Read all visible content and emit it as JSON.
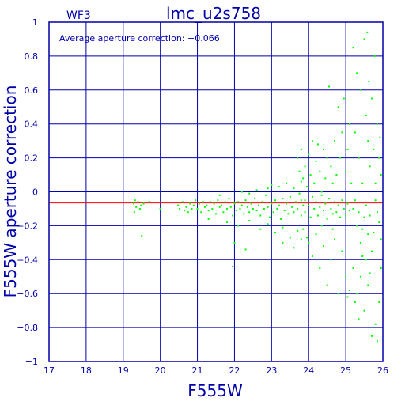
{
  "chart_data": {
    "type": "scatter",
    "title": "lmc_u2s758",
    "chip": "WF3",
    "annotation": "Average aperture correction: −0.066",
    "xlabel": "F555W",
    "ylabel": "F555W aperture correction",
    "xlim": [
      17,
      26
    ],
    "ylim": [
      -1,
      1
    ],
    "xticks": [
      17,
      18,
      19,
      20,
      21,
      22,
      23,
      24,
      25,
      26
    ],
    "yticks": [
      -1,
      -0.8,
      -0.6,
      -0.4,
      -0.2,
      0,
      0.2,
      0.4,
      0.6,
      0.8,
      1
    ],
    "xtick_labels": [
      "17",
      "18",
      "19",
      "20",
      "21",
      "22",
      "23",
      "24",
      "25",
      "26"
    ],
    "ytick_labels": [
      "−1",
      "−0.8",
      "−0.6",
      "−0.4",
      "−0.2",
      "0",
      "0.2",
      "0.4",
      "0.6",
      "0.8",
      "1"
    ],
    "grid": true,
    "average_line": -0.066,
    "colors": {
      "axes": "#0000aa",
      "grid": "#0000aa",
      "points": "#00ff00",
      "average": "#ff0000"
    },
    "series": [
      {
        "points": [
          [
            19.28,
            -0.07
          ],
          [
            19.32,
            -0.05
          ],
          [
            19.35,
            -0.09
          ],
          [
            19.4,
            -0.06
          ],
          [
            19.45,
            -0.1
          ],
          [
            19.48,
            -0.08
          ],
          [
            19.5,
            -0.26
          ],
          [
            19.55,
            -0.07
          ],
          [
            19.3,
            -0.12
          ],
          [
            19.7,
            -0.06
          ],
          [
            20.0,
            -0.1
          ],
          [
            20.48,
            -0.08
          ],
          [
            20.52,
            -0.1
          ],
          [
            20.6,
            -0.06
          ],
          [
            20.65,
            -0.11
          ],
          [
            20.7,
            -0.09
          ],
          [
            20.75,
            -0.12
          ],
          [
            20.8,
            -0.07
          ],
          [
            20.85,
            -0.1
          ],
          [
            20.9,
            -0.08
          ],
          [
            20.95,
            -0.05
          ],
          [
            21.0,
            -0.1
          ],
          [
            21.05,
            -0.07
          ],
          [
            21.1,
            -0.12
          ],
          [
            21.15,
            -0.06
          ],
          [
            21.2,
            -0.09
          ],
          [
            21.25,
            -0.08
          ],
          [
            21.3,
            -0.11
          ],
          [
            21.35,
            -0.06
          ],
          [
            21.4,
            -0.1
          ],
          [
            21.45,
            -0.07
          ],
          [
            21.5,
            -0.13
          ],
          [
            21.55,
            -0.05
          ],
          [
            21.6,
            -0.09
          ],
          [
            21.65,
            -0.08
          ],
          [
            21.7,
            -0.12
          ],
          [
            21.75,
            -0.06
          ],
          [
            21.8,
            -0.1
          ],
          [
            21.85,
            -0.04
          ],
          [
            21.9,
            -0.09
          ],
          [
            21.95,
            -0.14
          ],
          [
            22.0,
            -0.07
          ],
          [
            22.05,
            -0.11
          ],
          [
            22.1,
            -0.06
          ],
          [
            22.15,
            -0.1
          ],
          [
            22.2,
            -0.08
          ],
          [
            22.25,
            -0.13
          ],
          [
            22.3,
            -0.05
          ],
          [
            22.35,
            -0.09
          ],
          [
            22.4,
            -0.12
          ],
          [
            22.45,
            -0.07
          ],
          [
            22.5,
            -0.1
          ],
          [
            22.55,
            -0.04
          ],
          [
            22.6,
            -0.11
          ],
          [
            22.65,
            -0.08
          ],
          [
            22.7,
            -0.14
          ],
          [
            22.75,
            -0.06
          ],
          [
            22.8,
            -0.1
          ],
          [
            22.85,
            -0.02
          ],
          [
            22.9,
            -0.09
          ],
          [
            22.95,
            -0.15
          ],
          [
            23.0,
            -0.07
          ],
          [
            23.05,
            -0.12
          ],
          [
            23.1,
            -0.05
          ],
          [
            23.15,
            -0.1
          ],
          [
            23.2,
            -0.08
          ],
          [
            23.25,
            -0.16
          ],
          [
            23.3,
            -0.04
          ],
          [
            23.35,
            -0.11
          ],
          [
            23.4,
            -0.07
          ],
          [
            23.45,
            -0.13
          ],
          [
            23.5,
            -0.03
          ],
          [
            23.55,
            -0.09
          ],
          [
            23.6,
            -0.12
          ],
          [
            23.65,
            -0.06
          ],
          [
            23.7,
            -0.1
          ],
          [
            23.75,
            -0.01
          ],
          [
            23.8,
            -0.14
          ],
          [
            23.85,
            -0.08
          ],
          [
            23.9,
            -0.05
          ],
          [
            21.3,
            -0.16
          ],
          [
            21.8,
            -0.18
          ],
          [
            22.1,
            -0.2
          ],
          [
            22.4,
            -0.17
          ],
          [
            22.7,
            -0.22
          ],
          [
            22.9,
            -0.19
          ],
          [
            23.1,
            -0.24
          ],
          [
            23.3,
            -0.21
          ],
          [
            23.5,
            -0.27
          ],
          [
            23.7,
            -0.23
          ],
          [
            21.6,
            -0.02
          ],
          [
            22.2,
            0.0
          ],
          [
            22.6,
            0.01
          ],
          [
            22.9,
            0.02
          ],
          [
            23.2,
            0.03
          ],
          [
            23.4,
            0.05
          ],
          [
            23.6,
            0.02
          ],
          [
            23.8,
            0.06
          ],
          [
            23.0,
            0.04
          ],
          [
            22.4,
            -0.01
          ],
          [
            22.0,
            -0.3
          ],
          [
            21.95,
            -0.44
          ],
          [
            22.3,
            -0.34
          ],
          [
            23.3,
            -0.3
          ],
          [
            23.6,
            -0.33
          ],
          [
            23.8,
            -0.28
          ],
          [
            23.7,
            0.2
          ],
          [
            23.75,
            0.12
          ],
          [
            23.8,
            0.25
          ],
          [
            23.85,
            0.08
          ],
          [
            23.9,
            0.15
          ],
          [
            23.95,
            0.03
          ],
          [
            24.0,
            0.22
          ],
          [
            24.05,
            0.1
          ],
          [
            24.1,
            0.3
          ],
          [
            24.15,
            0.05
          ],
          [
            24.2,
            0.18
          ],
          [
            24.25,
            0.28
          ],
          [
            24.3,
            0.12
          ],
          [
            24.35,
            0.0
          ],
          [
            24.4,
            0.25
          ],
          [
            24.45,
            0.08
          ],
          [
            24.5,
            0.2
          ],
          [
            24.55,
            0.62
          ],
          [
            24.6,
            0.15
          ],
          [
            24.65,
            0.05
          ],
          [
            24.7,
            0.3
          ],
          [
            24.75,
            0.1
          ],
          [
            24.8,
            0.5
          ],
          [
            24.85,
            0.2
          ],
          [
            24.9,
            0.35
          ],
          [
            24.95,
            0.55
          ],
          [
            25.0,
            0.12
          ],
          [
            25.05,
            0.25
          ],
          [
            25.1,
            0.4
          ],
          [
            25.15,
            0.05
          ],
          [
            23.8,
            -0.05
          ],
          [
            23.9,
            -0.12
          ],
          [
            24.0,
            -0.08
          ],
          [
            24.05,
            -0.15
          ],
          [
            24.1,
            -0.03
          ],
          [
            24.15,
            -0.1
          ],
          [
            24.2,
            -0.06
          ],
          [
            24.25,
            -0.14
          ],
          [
            24.3,
            -0.09
          ],
          [
            24.35,
            -0.02
          ],
          [
            24.4,
            -0.11
          ],
          [
            24.45,
            -0.07
          ],
          [
            24.5,
            -0.16
          ],
          [
            24.55,
            -0.04
          ],
          [
            24.6,
            -0.1
          ],
          [
            24.65,
            -0.13
          ],
          [
            24.7,
            -0.06
          ],
          [
            24.75,
            -0.12
          ],
          [
            24.8,
            -0.08
          ],
          [
            24.85,
            -0.15
          ],
          [
            24.9,
            -0.05
          ],
          [
            24.95,
            -0.1
          ],
          [
            25.0,
            -0.14
          ],
          [
            25.05,
            -0.07
          ],
          [
            25.1,
            -0.11
          ],
          [
            23.85,
            -0.22
          ],
          [
            24.0,
            -0.3
          ],
          [
            24.1,
            -0.38
          ],
          [
            24.2,
            -0.25
          ],
          [
            24.3,
            -0.45
          ],
          [
            24.4,
            -0.32
          ],
          [
            24.5,
            -0.55
          ],
          [
            24.6,
            -0.4
          ],
          [
            24.7,
            -0.28
          ],
          [
            24.8,
            -0.6
          ],
          [
            24.9,
            -0.35
          ],
          [
            25.0,
            -0.5
          ],
          [
            25.05,
            -0.62
          ],
          [
            24.35,
            -0.2
          ],
          [
            24.65,
            -0.22
          ],
          [
            23.95,
            -0.27
          ],
          [
            25.2,
            0.85
          ],
          [
            25.3,
            0.7
          ],
          [
            25.4,
            0.6
          ],
          [
            25.5,
            0.9
          ],
          [
            25.55,
            0.45
          ],
          [
            25.6,
            0.3
          ],
          [
            25.65,
            0.15
          ],
          [
            25.7,
            0.55
          ],
          [
            25.75,
            0.25
          ],
          [
            25.8,
            0.05
          ],
          [
            25.85,
            0.4
          ],
          [
            25.9,
            0.2
          ],
          [
            25.95,
            0.1
          ],
          [
            25.25,
            0.35
          ],
          [
            25.35,
            0.2
          ],
          [
            25.45,
            0.05
          ],
          [
            25.58,
            0.94
          ],
          [
            25.62,
            0.65
          ],
          [
            25.78,
            0.8
          ],
          [
            25.92,
            0.32
          ],
          [
            25.2,
            -0.1
          ],
          [
            25.3,
            -0.2
          ],
          [
            25.4,
            -0.3
          ],
          [
            25.5,
            -0.15
          ],
          [
            25.6,
            -0.25
          ],
          [
            25.7,
            -0.35
          ],
          [
            25.8,
            -0.05
          ],
          [
            25.9,
            -0.18
          ],
          [
            25.95,
            -0.28
          ],
          [
            25.25,
            -0.05
          ],
          [
            25.35,
            -0.12
          ],
          [
            25.45,
            -0.22
          ],
          [
            25.55,
            -0.08
          ],
          [
            25.65,
            -0.14
          ],
          [
            25.75,
            -0.24
          ],
          [
            25.85,
            -0.12
          ],
          [
            25.2,
            -0.45
          ],
          [
            25.3,
            -0.6
          ],
          [
            25.4,
            -0.5
          ],
          [
            25.5,
            -0.7
          ],
          [
            25.55,
            -0.4
          ],
          [
            25.6,
            -0.55
          ],
          [
            25.7,
            -0.85
          ],
          [
            25.8,
            -0.78
          ],
          [
            25.9,
            -0.65
          ],
          [
            25.95,
            -0.45
          ],
          [
            25.25,
            -0.65
          ],
          [
            25.35,
            -0.75
          ],
          [
            25.45,
            -0.38
          ],
          [
            25.65,
            -0.48
          ],
          [
            25.85,
            -0.88
          ],
          [
            25.1,
            -0.58
          ]
        ]
      }
    ]
  }
}
